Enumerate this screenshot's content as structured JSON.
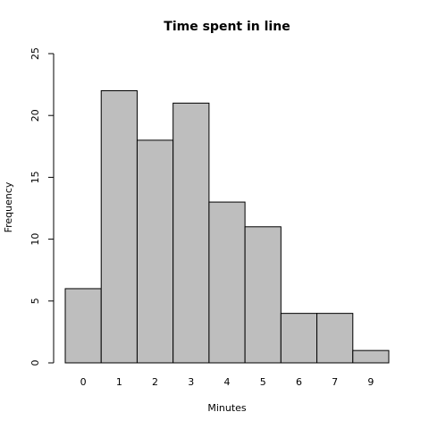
{
  "chart_data": {
    "type": "bar",
    "title": "Time spent in line",
    "xlabel": "Minutes",
    "ylabel": "Frequency",
    "categories": [
      "0",
      "1",
      "2",
      "3",
      "4",
      "5",
      "6",
      "7",
      "9"
    ],
    "values": [
      6,
      22,
      18,
      21,
      13,
      11,
      4,
      4,
      1
    ],
    "color": "#bebebe",
    "ylim": [
      0,
      25
    ],
    "yticks": [
      0,
      5,
      10,
      15,
      20,
      25
    ],
    "grid": false
  }
}
